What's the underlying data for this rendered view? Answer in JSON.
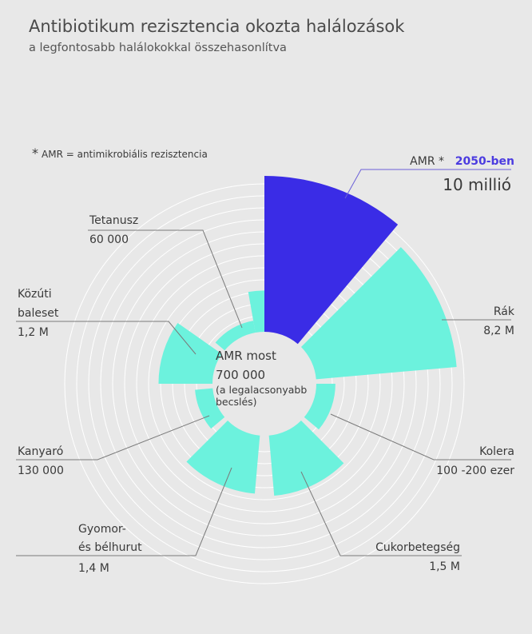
{
  "chart_data": {
    "type": "radial-bar",
    "title": "Antibiotikum rezisztencia okozta halálozások",
    "subtitle": "a legfontosabb halálokokkal összehasonlítva",
    "footnote": {
      "star": "*",
      "text": "AMR = antimikrobiális rezisztencia"
    },
    "colors": {
      "highlight": "#3a2ce6",
      "segment": "#6cf2dd",
      "highlight_text": "#4b3be0",
      "ring": "#ffffff",
      "background": "#e8e8e8"
    },
    "segments": [
      {
        "key": "amr2050",
        "value": 10000000,
        "start_angle": 0,
        "end_angle": 40,
        "color": "highlight"
      },
      {
        "key": "rak",
        "value": 8200000,
        "start_angle": 45,
        "end_angle": 85,
        "color": "segment"
      },
      {
        "key": "kolera",
        "value": 150000,
        "start_angle": 90,
        "end_angle": 130,
        "color": "segment"
      },
      {
        "key": "cukor",
        "value": 1500000,
        "start_angle": 135,
        "end_angle": 175,
        "color": "segment"
      },
      {
        "key": "gyomor",
        "value": 1400000,
        "start_angle": 185,
        "end_angle": 225,
        "color": "segment"
      },
      {
        "key": "kanyaro",
        "value": 130000,
        "start_angle": 230,
        "end_angle": 265,
        "color": "segment"
      },
      {
        "key": "kozuti",
        "value": 1200000,
        "start_angle": 270,
        "end_angle": 305,
        "color": "segment"
      },
      {
        "key": "tetanusz",
        "value": 60000,
        "start_angle": 310,
        "end_angle": 350,
        "color": "segment"
      },
      {
        "key": "amrnow",
        "value": 700000,
        "start_angle": 350,
        "end_angle": 360,
        "color": "segment"
      }
    ],
    "labels": {
      "amr2050": {
        "prefix": "AMR *",
        "year": "2050-ben",
        "value": "10 millió"
      },
      "rak": {
        "name": "Rák",
        "value": "8,2 M"
      },
      "kolera": {
        "name": "Kolera",
        "value": "100 -200 ezer"
      },
      "cukor": {
        "name": "Cukorbetegség",
        "value": "1,5 M"
      },
      "gyomor": {
        "name_line1": "Gyomor-",
        "name_line2": "és bélhurut",
        "value": "1,4 M"
      },
      "kanyaro": {
        "name": "Kanyaró",
        "value": "130 000"
      },
      "kozuti": {
        "name_line1": "Közúti",
        "name_line2": "baleset",
        "value": "1,2 M"
      },
      "tetanusz": {
        "name": "Tetanusz",
        "value": "60 000"
      },
      "amrnow": {
        "name": "AMR most",
        "value": "700 000",
        "note_line1": "(a legalacsonyabb",
        "note_line2": "becslés)"
      }
    }
  }
}
